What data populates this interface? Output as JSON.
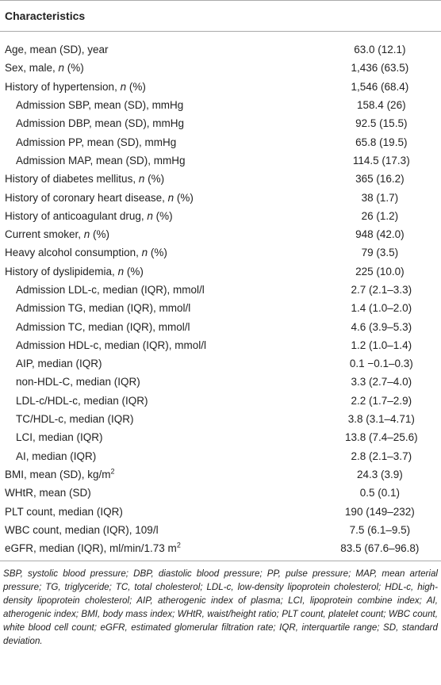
{
  "table": {
    "header": "Characteristics",
    "rows": [
      {
        "label": [
          "Age, mean (SD), year"
        ],
        "value": "63.0 (12.1)"
      },
      {
        "label": [
          "Sex, male, ",
          {
            "text": "n",
            "style": "italic"
          },
          " (%)"
        ],
        "value": "1,436 (63.5)"
      },
      {
        "label": [
          "History of hypertension, ",
          {
            "text": "n",
            "style": "italic"
          },
          " (%)"
        ],
        "value": "1,546 (68.4)"
      },
      {
        "label": [
          "Admission SBP, mean (SD), mmHg"
        ],
        "value": "158.4 (26)",
        "indent": true
      },
      {
        "label": [
          "Admission DBP, mean (SD), mmHg"
        ],
        "value": "92.5 (15.5)",
        "indent": true
      },
      {
        "label": [
          "Admission PP, mean (SD), mmHg"
        ],
        "value": "65.8 (19.5)",
        "indent": true
      },
      {
        "label": [
          "Admission MAP, mean (SD), mmHg"
        ],
        "value": "114.5 (17.3)",
        "indent": true
      },
      {
        "label": [
          "History of diabetes mellitus, ",
          {
            "text": "n",
            "style": "italic"
          },
          " (%)"
        ],
        "value": "365 (16.2)"
      },
      {
        "label": [
          "History of coronary heart disease, ",
          {
            "text": "n",
            "style": "italic"
          },
          " (%)"
        ],
        "value": "38 (1.7)"
      },
      {
        "label": [
          "History of anticoagulant drug, ",
          {
            "text": "n",
            "style": "italic"
          },
          " (%)"
        ],
        "value": "26 (1.2)"
      },
      {
        "label": [
          "Current smoker, ",
          {
            "text": "n",
            "style": "italic"
          },
          " (%)"
        ],
        "value": "948 (42.0)"
      },
      {
        "label": [
          "Heavy alcohol consumption, ",
          {
            "text": "n",
            "style": "italic"
          },
          " (%)"
        ],
        "value": "79 (3.5)"
      },
      {
        "label": [
          "History of dyslipidemia, ",
          {
            "text": "n",
            "style": "italic"
          },
          " (%)"
        ],
        "value": "225 (10.0)"
      },
      {
        "label": [
          "Admission LDL-c, median (IQR), mmol/l"
        ],
        "value": "2.7 (2.1–3.3)",
        "indent": true
      },
      {
        "label": [
          "Admission TG, median (IQR), mmol/l"
        ],
        "value": "1.4 (1.0–2.0)",
        "indent": true
      },
      {
        "label": [
          "Admission TC, median (IQR), mmol/l"
        ],
        "value": "4.6 (3.9–5.3)",
        "indent": true
      },
      {
        "label": [
          "Admission HDL-c, median (IQR), mmol/l"
        ],
        "value": "1.2 (1.0–1.4)",
        "indent": true
      },
      {
        "label": [
          "AIP, median (IQR)"
        ],
        "value": "0.1 −0.1–0.3)",
        "indent": true
      },
      {
        "label": [
          "non-HDL-C, median (IQR)"
        ],
        "value": "3.3 (2.7–4.0)",
        "indent": true
      },
      {
        "label": [
          "LDL-c/HDL-c, median (IQR)"
        ],
        "value": "2.2 (1.7–2.9)",
        "indent": true
      },
      {
        "label": [
          "TC/HDL-c, median (IQR)"
        ],
        "value": "3.8 (3.1–4.71)",
        "indent": true
      },
      {
        "label": [
          "LCI, median (IQR)"
        ],
        "value": "13.8 (7.4–25.6)",
        "indent": true
      },
      {
        "label": [
          "AI, median (IQR)"
        ],
        "value": "2.8 (2.1–3.7)",
        "indent": true
      },
      {
        "label": [
          "BMI, mean (SD), kg/m",
          {
            "text": "2",
            "style": "sup"
          }
        ],
        "value": "24.3 (3.9)"
      },
      {
        "label": [
          "WHtR, mean (SD)"
        ],
        "value": "0.5 (0.1)"
      },
      {
        "label": [
          "PLT count, median (IQR)"
        ],
        "value": "190 (149–232)"
      },
      {
        "label": [
          "WBC count, median (IQR), 109/l"
        ],
        "value": "7.5 (6.1–9.5)"
      },
      {
        "label": [
          "eGFR, median (IQR), ml/min/1.73 m",
          {
            "text": "2",
            "style": "sup"
          }
        ],
        "value": "83.5 (67.6–96.8)"
      }
    ]
  },
  "footnote": "SBP, systolic blood pressure; DBP, diastolic blood pressure; PP, pulse pressure; MAP, mean arterial pressure; TG, triglyceride; TC, total cholesterol; LDL-c, low-density lipoprotein cholesterol; HDL-c, high-density lipoprotein cholesterol; AIP, atherogenic index of plasma; LCI, lipoprotein combine index; AI, atherogenic index; BMI, body mass index; WHtR, waist/height ratio; PLT count, platelet count; WBC count, white blood cell count; eGFR, estimated glomerular filtration rate; IQR, interquartile range; SD, standard deviation."
}
